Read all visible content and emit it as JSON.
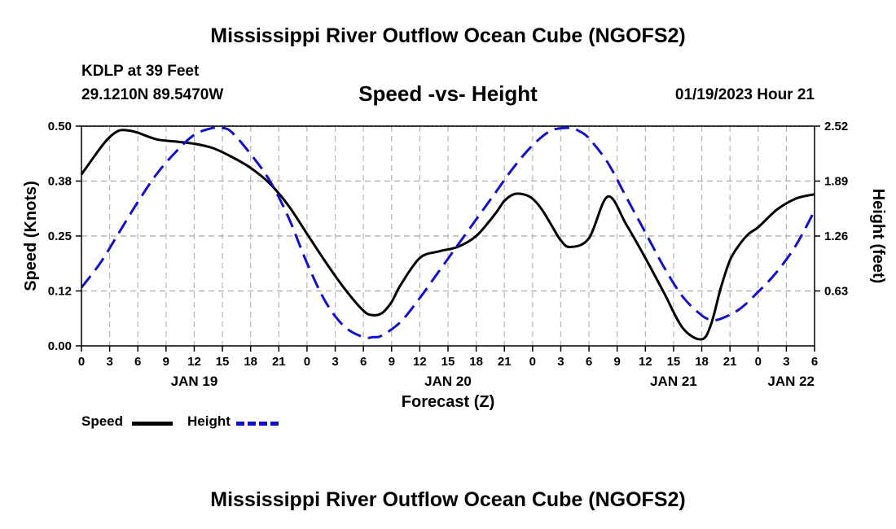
{
  "page": {
    "title": "Mississippi River Outflow Ocean Cube (NGOFS2)",
    "bottom_title": "Mississippi River Outflow Ocean Cube (NGOFS2)",
    "station": "KDLP at 39 Feet",
    "coordinates": "29.1210N  89.5470W",
    "subtitle": "Speed -vs- Height",
    "datetime": "01/19/2023 Hour 21"
  },
  "legend": {
    "speed_label": "Speed",
    "height_label": "Height"
  },
  "colors": {
    "speed": "#000000",
    "height": "#1010cc",
    "grid": "#b4b4b4"
  },
  "chart_data": {
    "type": "line",
    "title": "Speed -vs- Height",
    "xlabel": "Forecast (Z)",
    "ylabel": "Speed (Knots)",
    "y2label": "Height (feet)",
    "xlim": [
      0,
      78
    ],
    "ylim": [
      0,
      0.5
    ],
    "y2lim": [
      0,
      2.52
    ],
    "x_ticks": [
      0,
      3,
      6,
      9,
      12,
      15,
      18,
      21,
      24,
      27,
      30,
      33,
      36,
      39,
      42,
      45,
      48,
      51,
      54,
      57,
      60,
      63,
      66,
      69,
      72,
      75,
      78
    ],
    "x_tick_labels": [
      "0",
      "3",
      "6",
      "9",
      "12",
      "15",
      "18",
      "21",
      "0",
      "3",
      "6",
      "9",
      "12",
      "15",
      "18",
      "21",
      "0",
      "3",
      "6",
      "9",
      "12",
      "15",
      "18",
      "21",
      "0",
      "3",
      "6"
    ],
    "day_labels": [
      {
        "x": 12,
        "label": "JAN 19"
      },
      {
        "x": 39,
        "label": "JAN 20"
      },
      {
        "x": 63,
        "label": "JAN 21"
      },
      {
        "x": 78,
        "label": "JAN 22"
      }
    ],
    "y_ticks": [
      0.0,
      0.125,
      0.25,
      0.375,
      0.5
    ],
    "y_tick_labels": [
      "0.00",
      "0.12",
      "0.25",
      "0.38",
      "0.50"
    ],
    "y2_ticks": [
      0.63,
      1.26,
      1.89,
      2.52
    ],
    "y2_tick_labels": [
      "0.63",
      "1.26",
      "1.89",
      "2.52"
    ],
    "grid": true,
    "legend_position": "bottom-left",
    "series": [
      {
        "name": "Speed",
        "axis": "left",
        "x": [
          0,
          2,
          3,
          4,
          5,
          6,
          8,
          10,
          12,
          14,
          16,
          18,
          20,
          22,
          24,
          26,
          28,
          30,
          31,
          32,
          33,
          34,
          36,
          38,
          40,
          42,
          44,
          45,
          46,
          47,
          48,
          49,
          50,
          51,
          52,
          54,
          56,
          58,
          60,
          62,
          64,
          66,
          67,
          68,
          69,
          70,
          71,
          72,
          74,
          76,
          78
        ],
        "values": [
          0.39,
          0.45,
          0.475,
          0.49,
          0.49,
          0.485,
          0.47,
          0.465,
          0.46,
          0.45,
          0.43,
          0.405,
          0.37,
          0.32,
          0.255,
          0.19,
          0.13,
          0.08,
          0.07,
          0.075,
          0.1,
          0.14,
          0.2,
          0.215,
          0.225,
          0.25,
          0.3,
          0.33,
          0.345,
          0.345,
          0.335,
          0.31,
          0.275,
          0.24,
          0.225,
          0.245,
          0.34,
          0.275,
          0.2,
          0.12,
          0.04,
          0.015,
          0.05,
          0.13,
          0.195,
          0.23,
          0.255,
          0.27,
          0.31,
          0.335,
          0.345
        ]
      },
      {
        "name": "Height",
        "axis": "right",
        "x": [
          0,
          2,
          4,
          6,
          8,
          10,
          12,
          14,
          15,
          16,
          18,
          20,
          22,
          24,
          26,
          28,
          30,
          31,
          32,
          34,
          36,
          38,
          40,
          42,
          44,
          46,
          48,
          50,
          52,
          53,
          54,
          56,
          58,
          60,
          62,
          64,
          66,
          67,
          68,
          70,
          72,
          74,
          76,
          78
        ],
        "values": [
          0.67,
          0.95,
          1.3,
          1.65,
          1.97,
          2.22,
          2.42,
          2.5,
          2.5,
          2.45,
          2.2,
          1.9,
          1.48,
          0.95,
          0.5,
          0.22,
          0.1,
          0.1,
          0.12,
          0.28,
          0.55,
          0.85,
          1.15,
          1.45,
          1.75,
          2.05,
          2.3,
          2.47,
          2.5,
          2.46,
          2.38,
          2.1,
          1.7,
          1.3,
          0.9,
          0.56,
          0.35,
          0.3,
          0.31,
          0.42,
          0.62,
          0.85,
          1.15,
          1.55
        ]
      }
    ]
  }
}
